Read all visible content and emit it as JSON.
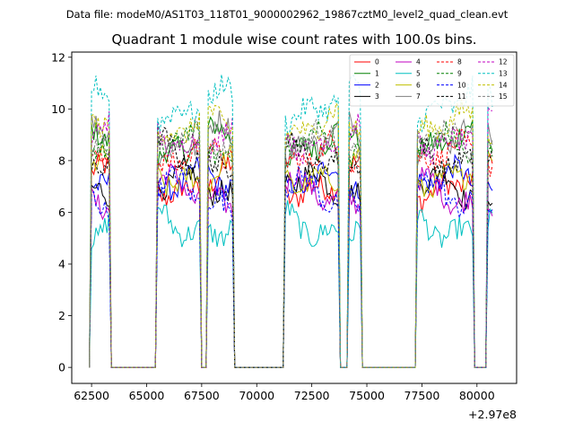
{
  "chart_data": {
    "type": "line",
    "suptitle": "Data file: modeM0/AS1T03_118T01_9000002962_19867cztM0_level2_quad_clean.evt",
    "title": "Quadrant 1 module wise count rates with 100.0s bins.",
    "xlabel": "",
    "ylabel": "",
    "x_offset_label": "+2.97e8",
    "x_offset": 297000000,
    "xlim": [
      61600,
      81800
    ],
    "ylim": [
      -0.62,
      12.2
    ],
    "x_ticks": [
      62500,
      65000,
      67500,
      70000,
      72500,
      75000,
      77500,
      80000
    ],
    "x_tick_labels": [
      "62500",
      "65000",
      "67500",
      "70000",
      "72500",
      "75000",
      "77500",
      "80000"
    ],
    "y_ticks": [
      0,
      2,
      4,
      6,
      8,
      10,
      12
    ],
    "y_tick_labels": [
      "0",
      "2",
      "4",
      "6",
      "8",
      "10",
      "12"
    ],
    "bin_size_s": 100,
    "legend_position": "top-right",
    "active_segments": [
      [
        62450,
        63300
      ],
      [
        65450,
        67420
      ],
      [
        67720,
        68980
      ],
      [
        71300,
        73700
      ],
      [
        74150,
        74760
      ],
      [
        77300,
        79800
      ],
      [
        80450,
        80700
      ]
    ],
    "series": [
      {
        "name": "0",
        "color": "#ff0000",
        "dash": "solid",
        "mean": 7.2
      },
      {
        "name": "1",
        "color": "#008000",
        "dash": "solid",
        "mean": 8.6
      },
      {
        "name": "2",
        "color": "#0000ff",
        "dash": "solid",
        "mean": 7.0
      },
      {
        "name": "3",
        "color": "#000000",
        "dash": "solid",
        "mean": 6.9
      },
      {
        "name": "4",
        "color": "#c000c0",
        "dash": "solid",
        "mean": 6.8
      },
      {
        "name": "5",
        "color": "#00c0c0",
        "dash": "solid",
        "mean": 5.6
      },
      {
        "name": "6",
        "color": "#c0c000",
        "dash": "solid",
        "mean": 7.6
      },
      {
        "name": "7",
        "color": "#808080",
        "dash": "solid",
        "mean": 8.8
      },
      {
        "name": "8",
        "color": "#ff0000",
        "dash": "dashed",
        "mean": 8.0
      },
      {
        "name": "9",
        "color": "#008000",
        "dash": "dashed",
        "mean": 8.4
      },
      {
        "name": "10",
        "color": "#0000ff",
        "dash": "dashed",
        "mean": 6.7
      },
      {
        "name": "11",
        "color": "#000000",
        "dash": "dashed",
        "mean": 8.3
      },
      {
        "name": "12",
        "color": "#c000c0",
        "dash": "dashed",
        "mean": 9.0
      },
      {
        "name": "13",
        "color": "#00c0c0",
        "dash": "dashed",
        "mean": 10.2
      },
      {
        "name": "14",
        "color": "#c0c000",
        "dash": "dashed",
        "mean": 9.2
      },
      {
        "name": "15",
        "color": "#808080",
        "dash": "dashed",
        "mean": 8.5
      }
    ]
  }
}
